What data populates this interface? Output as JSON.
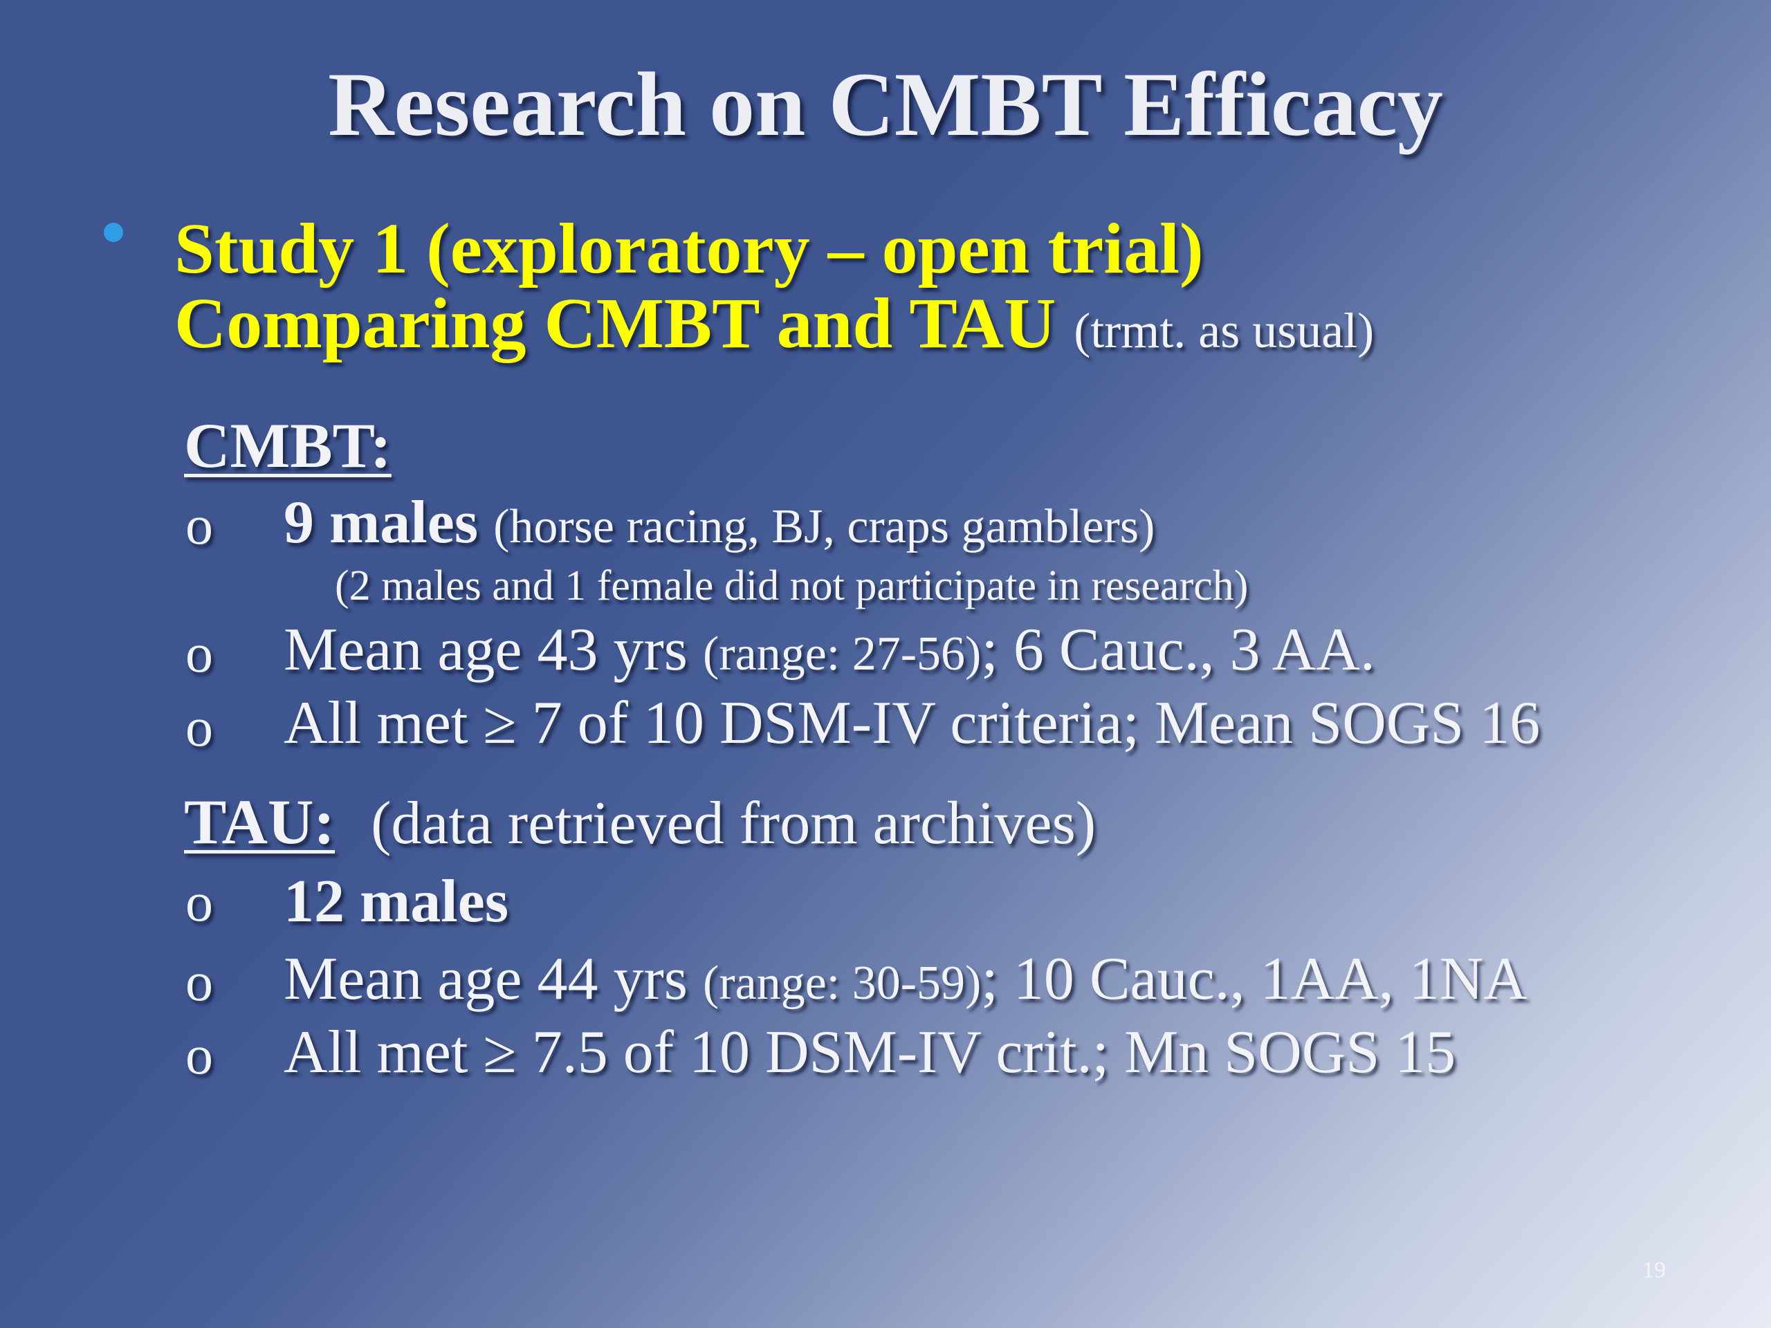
{
  "slide": {
    "title": "Research on CMBT Efficacy",
    "page_number": "19"
  },
  "study": {
    "line1": "Study 1 (exploratory – open trial)",
    "line2_main": "Comparing CMBT and TAU",
    "line2_sub": "(trmt. as usual)"
  },
  "cmbt": {
    "heading": "CMBT:",
    "marker": "o",
    "item1_bold": "9 males",
    "item1_rest": "(horse racing, BJ, craps gamblers)",
    "note": "(2 males and 1 female did not participate in research)",
    "item2_main": "Mean age 43 yrs",
    "item2_small": "(range: 27-56)",
    "item2_rest": "; 6 Cauc., 3 AA.",
    "item3": "All met ≥ 7 of 10 DSM-IV criteria; Mean SOGS 16"
  },
  "tau": {
    "heading": "TAU:",
    "heading_note": "(data retrieved from archives)",
    "marker": "o",
    "item1_bold": "12 males",
    "item2_main": "Mean age 44 yrs",
    "item2_small": "(range: 30-59)",
    "item2_rest": "; 10 Cauc., 1AA, 1NA",
    "item3": "All met ≥ 7.5 of 10 DSM-IV crit.; Mn SOGS 15"
  }
}
